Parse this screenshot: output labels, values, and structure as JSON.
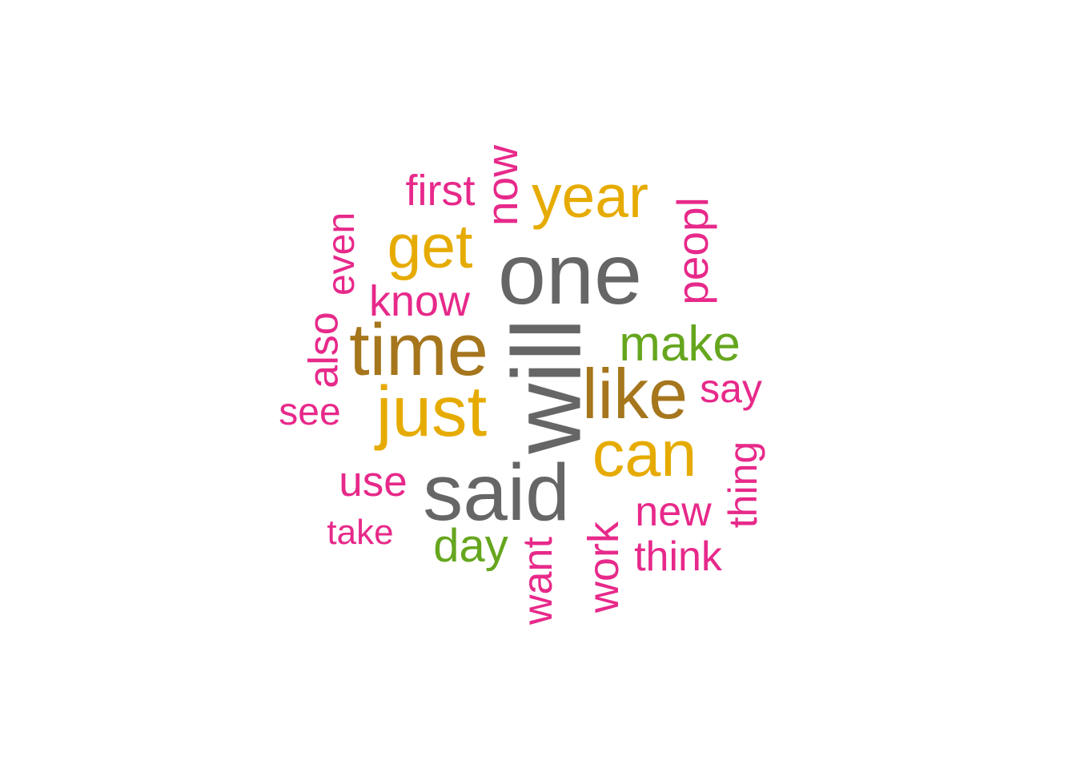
{
  "wordcloud": {
    "colors": {
      "gray": "#666666",
      "gold": "#E6AB02",
      "brown": "#A6761D",
      "green": "#66A61E",
      "pink": "#E7298A"
    },
    "words": [
      {
        "text": "will",
        "color": "#666666",
        "rotated": true
      },
      {
        "text": "one",
        "color": "#666666",
        "rotated": false
      },
      {
        "text": "said",
        "color": "#666666",
        "rotated": false
      },
      {
        "text": "time",
        "color": "#A6761D",
        "rotated": false
      },
      {
        "text": "like",
        "color": "#A6761D",
        "rotated": false
      },
      {
        "text": "year",
        "color": "#E6AB02",
        "rotated": false
      },
      {
        "text": "get",
        "color": "#E6AB02",
        "rotated": false
      },
      {
        "text": "just",
        "color": "#E6AB02",
        "rotated": false
      },
      {
        "text": "can",
        "color": "#E6AB02",
        "rotated": false
      },
      {
        "text": "make",
        "color": "#66A61E",
        "rotated": false
      },
      {
        "text": "day",
        "color": "#66A61E",
        "rotated": false
      },
      {
        "text": "first",
        "color": "#E7298A",
        "rotated": false
      },
      {
        "text": "now",
        "color": "#E7298A",
        "rotated": true
      },
      {
        "text": "peopl",
        "color": "#E7298A",
        "rotated": true
      },
      {
        "text": "even",
        "color": "#E7298A",
        "rotated": true
      },
      {
        "text": "know",
        "color": "#E7298A",
        "rotated": false
      },
      {
        "text": "also",
        "color": "#E7298A",
        "rotated": true
      },
      {
        "text": "say",
        "color": "#E7298A",
        "rotated": false
      },
      {
        "text": "see",
        "color": "#E7298A",
        "rotated": false
      },
      {
        "text": "thing",
        "color": "#E7298A",
        "rotated": true
      },
      {
        "text": "use",
        "color": "#E7298A",
        "rotated": false
      },
      {
        "text": "new",
        "color": "#E7298A",
        "rotated": false
      },
      {
        "text": "take",
        "color": "#E7298A",
        "rotated": false
      },
      {
        "text": "work",
        "color": "#E7298A",
        "rotated": true
      },
      {
        "text": "want",
        "color": "#E7298A",
        "rotated": true
      },
      {
        "text": "think",
        "color": "#E7298A",
        "rotated": false
      }
    ]
  }
}
